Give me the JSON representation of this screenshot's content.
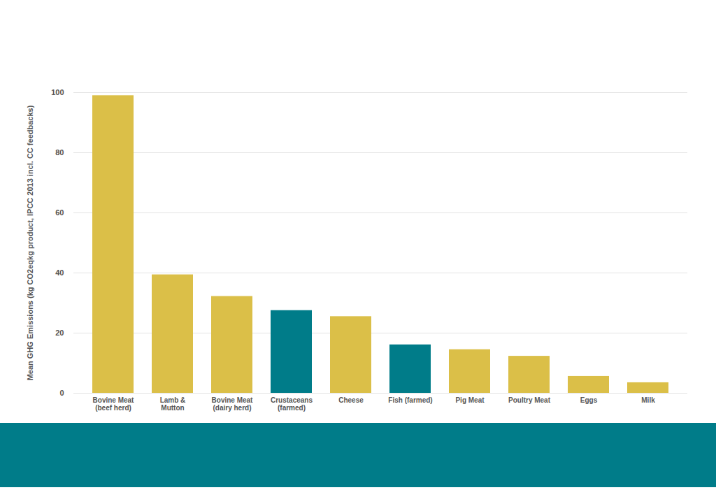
{
  "chart_data": {
    "type": "bar",
    "y_label": "Mean GHG Emissions (kg CO2eqkg product, IPCC 2013 incl. CC feedbacks)",
    "categories": [
      "Bovine Meat\n(beef herd)",
      "Lamb &\nMutton",
      "Bovine Meat\n(dairy herd)",
      "Crustaceans\n(farmed)",
      "Cheese",
      "Fish (farmed)",
      "Pig Meat",
      "Poultry Meat",
      "Eggs",
      "Milk"
    ],
    "values": [
      99.0,
      39.4,
      32.2,
      27.5,
      25.5,
      16.1,
      14.5,
      12.3,
      5.6,
      3.5
    ],
    "colors": [
      "#dbbf48",
      "#dbbf48",
      "#dbbf48",
      "#007c89",
      "#dbbf48",
      "#007c89",
      "#dbbf48",
      "#dbbf48",
      "#dbbf48",
      "#dbbf48"
    ],
    "ylim": [
      0,
      100
    ],
    "yticks": [
      0,
      20,
      40,
      60,
      80,
      100
    ],
    "grid": true
  }
}
